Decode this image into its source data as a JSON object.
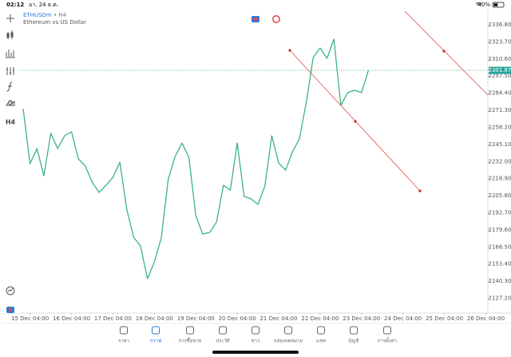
{
  "status_bar": {
    "time": "02:12",
    "date": "อา. 24 ธ.ค.",
    "battery": "40%"
  },
  "header": {
    "symbol": "ETHUSDm",
    "timeframe": "• H4",
    "description": "Ethereum vs US Dollar"
  },
  "toolbar": {
    "timeframe": "H4"
  },
  "chart_data": {
    "type": "line",
    "color": "#3cb37f",
    "grid": false,
    "x": [
      "15 Dec 00:00",
      "15 Dec 04:00",
      "15 Dec 08:00",
      "15 Dec 12:00",
      "15 Dec 16:00",
      "15 Dec 20:00",
      "16 Dec 00:00",
      "16 Dec 04:00",
      "16 Dec 08:00",
      "16 Dec 12:00",
      "16 Dec 16:00",
      "16 Dec 20:00",
      "17 Dec 00:00",
      "17 Dec 04:00",
      "17 Dec 08:00",
      "17 Dec 12:00",
      "17 Dec 16:00",
      "17 Dec 20:00",
      "18 Dec 00:00",
      "18 Dec 04:00",
      "18 Dec 08:00",
      "18 Dec 12:00",
      "18 Dec 16:00",
      "18 Dec 20:00",
      "19 Dec 00:00",
      "19 Dec 04:00",
      "19 Dec 08:00",
      "19 Dec 12:00",
      "19 Dec 16:00",
      "19 Dec 20:00",
      "20 Dec 00:00",
      "20 Dec 04:00",
      "20 Dec 08:00",
      "20 Dec 12:00",
      "20 Dec 16:00",
      "20 Dec 20:00",
      "21 Dec 00:00",
      "21 Dec 04:00",
      "21 Dec 08:00",
      "21 Dec 12:00",
      "21 Dec 16:00",
      "21 Dec 20:00",
      "22 Dec 00:00",
      "22 Dec 04:00",
      "22 Dec 08:00",
      "22 Dec 12:00",
      "22 Dec 16:00",
      "22 Dec 20:00",
      "23 Dec 00:00",
      "23 Dec 04:00",
      "23 Dec 08:00"
    ],
    "values": [
      2272.5,
      2230.3,
      2241.9,
      2221.1,
      2253.6,
      2241.9,
      2251.7,
      2254.8,
      2234.0,
      2228.5,
      2216.2,
      2208.3,
      2213.8,
      2219.9,
      2231.5,
      2195.4,
      2174.0,
      2167.2,
      2142.2,
      2155.0,
      2173.4,
      2218.1,
      2235.8,
      2246.2,
      2235.2,
      2190.5,
      2176.4,
      2177.7,
      2185.6,
      2213.8,
      2210.1,
      2246.2,
      2205.2,
      2203.4,
      2199.1,
      2213.2,
      2251.7,
      2230.9,
      2225.4,
      2239.5,
      2249.3,
      2277.4,
      2311.7,
      2319.0,
      2311.1,
      2325.8,
      2275.0,
      2284.8,
      2286.6,
      2284.8,
      2301.87
    ],
    "xlim": [
      "15 Dec 00:00",
      "26 Dec 04:00"
    ],
    "xticks": [
      "15 Dec 04:00",
      "16 Dec 04:00",
      "17 Dec 04:00",
      "18 Dec 04:00",
      "19 Dec 04:00",
      "20 Dec 04:00",
      "21 Dec 04:00",
      "22 Dec 04:00",
      "23 Dec 04:00",
      "24 Dec 04:00",
      "25 Dec 04:00",
      "26 Dec 04:00"
    ],
    "ylim": [
      2117.1,
      2346.6
    ],
    "yticks": [
      {
        "value": 2336.8,
        "label": "2336.80"
      },
      {
        "value": 2323.7,
        "label": "2323.70"
      },
      {
        "value": 2310.6,
        "label": "2310.60"
      },
      {
        "value": 2297.5,
        "label": "2297.50"
      },
      {
        "value": 2284.4,
        "label": "2284.40"
      },
      {
        "value": 2271.3,
        "label": "2271.30"
      },
      {
        "value": 2258.2,
        "label": "2258.20"
      },
      {
        "value": 2245.1,
        "label": "2245.10"
      },
      {
        "value": 2232.0,
        "label": "2232.00"
      },
      {
        "value": 2218.9,
        "label": "2218.90"
      },
      {
        "value": 2205.8,
        "label": "2205.80"
      },
      {
        "value": 2192.7,
        "label": "2192.70"
      },
      {
        "value": 2179.6,
        "label": "2179.60"
      },
      {
        "value": 2166.5,
        "label": "2166.50"
      },
      {
        "value": 2153.4,
        "label": "2153.40"
      },
      {
        "value": 2140.3,
        "label": "2140.30"
      },
      {
        "value": 2127.2,
        "label": "2127.20"
      }
    ],
    "last_price": 2301.87
  },
  "nav": {
    "items": [
      "ราคา",
      "กราฟ",
      "การซื้อขาย",
      "ประวัติ",
      "ข่าว",
      "กล่องจดหมาย",
      "แชท",
      "บัญชี",
      "การตั้งค่า"
    ],
    "active": 1
  }
}
